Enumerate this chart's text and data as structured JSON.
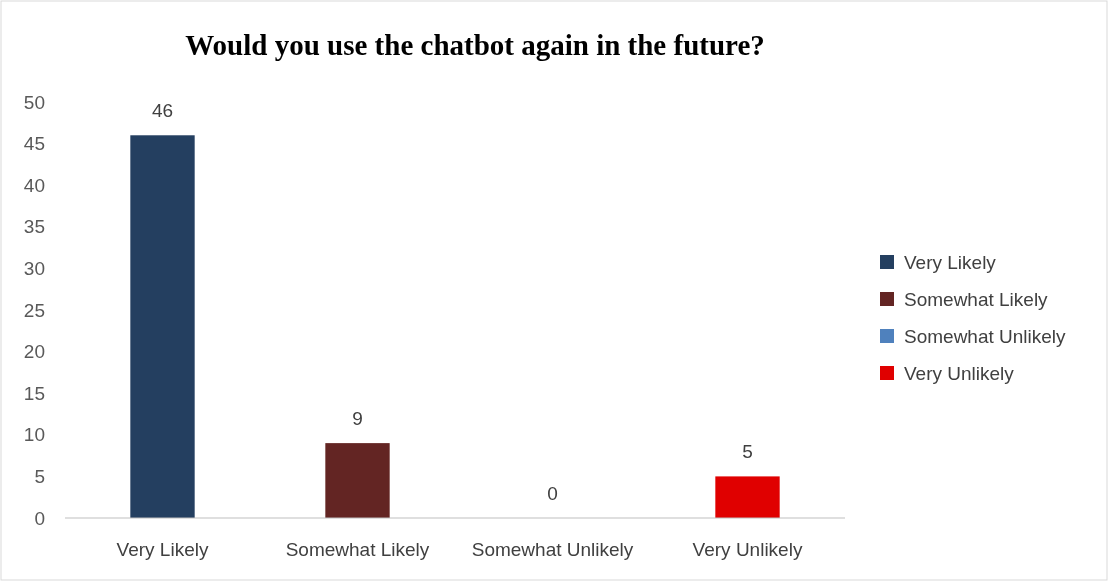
{
  "chart_data": {
    "type": "bar",
    "title": "Would you use the chatbot again in the future?",
    "categories": [
      "Very Likely",
      "Somewhat Likely",
      "Somewhat Unlikely",
      "Very Unlikely"
    ],
    "series": [
      {
        "name": "Very Likely",
        "color": "#243f60",
        "values": [
          46,
          null,
          null,
          null
        ]
      },
      {
        "name": "Somewhat Likely",
        "color": "#632523",
        "values": [
          null,
          9,
          null,
          null
        ]
      },
      {
        "name": "Somewhat Unlikely",
        "color": "#4f81bd",
        "values": [
          null,
          null,
          0,
          null
        ]
      },
      {
        "name": "Very Unlikely",
        "color": "#e00000",
        "values": [
          null,
          null,
          null,
          5
        ]
      }
    ],
    "stacked": true,
    "ylim": [
      0,
      50
    ],
    "yticks": [
      0,
      5,
      10,
      15,
      20,
      25,
      30,
      35,
      40,
      45,
      50
    ],
    "grid": false,
    "data_labels": true,
    "legend": "right"
  }
}
